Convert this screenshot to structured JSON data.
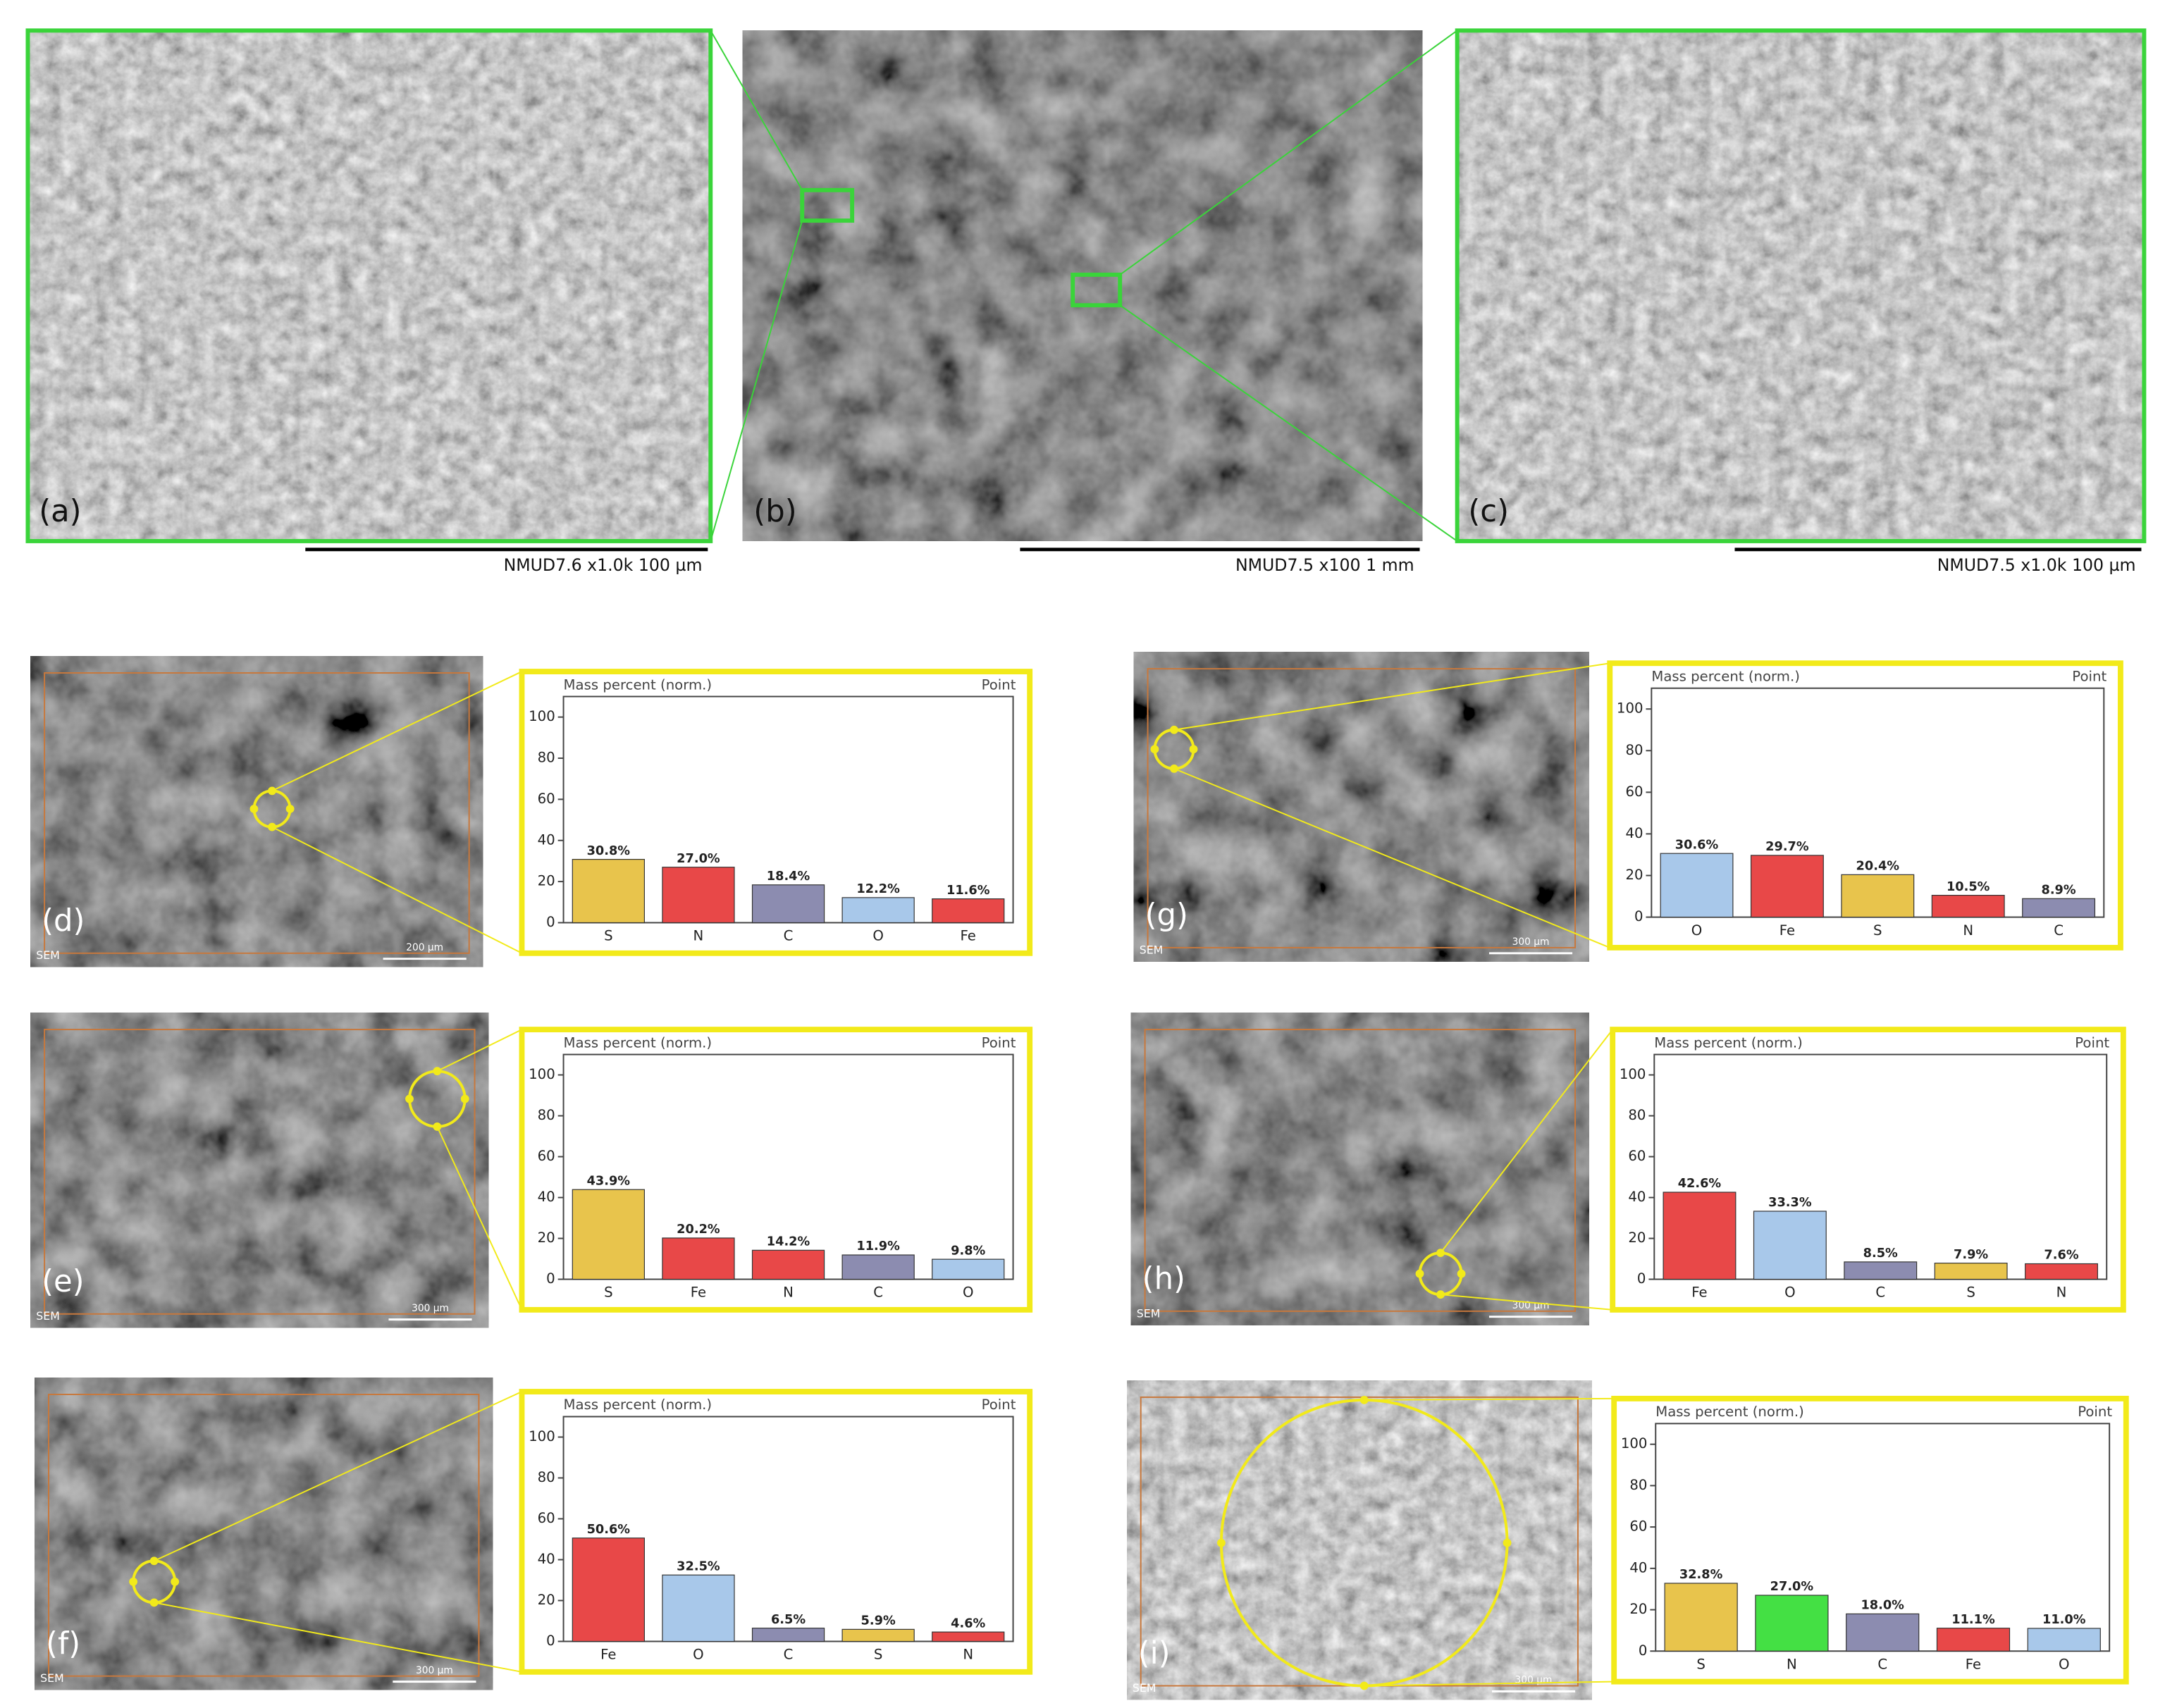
{
  "panels": [
    {
      "label": "(a)",
      "caption": "NMUD7.6   x1.0k    100 µm"
    },
    {
      "label": "(b)",
      "caption": "NMUD7.5   x100        1 mm"
    },
    {
      "label": "(c)",
      "caption": "NMUD7.5   x1.0k    100 µm"
    },
    {
      "label": "(d)",
      "sem": "SEM",
      "scale": "200 µm"
    },
    {
      "label": "(e)",
      "sem": "SEM",
      "scale": "300 µm"
    },
    {
      "label": "(f)",
      "sem": "SEM",
      "scale": "300 µm"
    },
    {
      "label": "(g)",
      "sem": "SEM",
      "scale": "300 µm"
    },
    {
      "label": "(h)",
      "sem": "SEM",
      "scale": "300 µm"
    },
    {
      "label": "(i)",
      "sem": "SEM",
      "scale": "300 µm"
    }
  ],
  "chart_data": [
    {
      "type": "bar",
      "title": "Mass percent (norm.)",
      "corner": "Point",
      "categories": [
        "S",
        "N",
        "C",
        "O",
        "Fe"
      ],
      "values": [
        30.8,
        27.0,
        18.4,
        12.2,
        11.6
      ],
      "value_labels": [
        "30.8%",
        "27.0%",
        "18.4%",
        "12.2%",
        "11.6%"
      ],
      "colors": [
        "#e8c44c",
        "#e84848",
        "#8c8cb0",
        "#a8c8ea",
        "#e84848"
      ],
      "ylim": [
        0,
        110
      ],
      "yticks": [
        0,
        20,
        40,
        60,
        80,
        100
      ]
    },
    {
      "type": "bar",
      "title": "Mass percent (norm.)",
      "corner": "Point",
      "categories": [
        "S",
        "Fe",
        "N",
        "C",
        "O"
      ],
      "values": [
        43.9,
        20.2,
        14.2,
        11.9,
        9.8
      ],
      "value_labels": [
        "43.9%",
        "20.2%",
        "14.2%",
        "11.9%",
        "9.8%"
      ],
      "colors": [
        "#e8c44c",
        "#e84848",
        "#e84848",
        "#8c8cb0",
        "#a8c8ea"
      ],
      "ylim": [
        0,
        110
      ],
      "yticks": [
        0,
        20,
        40,
        60,
        80,
        100
      ]
    },
    {
      "type": "bar",
      "title": "Mass percent (norm.)",
      "corner": "Point",
      "categories": [
        "Fe",
        "O",
        "C",
        "S",
        "N"
      ],
      "values": [
        50.6,
        32.5,
        6.5,
        5.9,
        4.6
      ],
      "value_labels": [
        "50.6%",
        "32.5%",
        "6.5%",
        "5.9%",
        "4.6%"
      ],
      "colors": [
        "#e84848",
        "#a8c8ea",
        "#8c8cb0",
        "#e8c44c",
        "#e84848"
      ],
      "ylim": [
        0,
        110
      ],
      "yticks": [
        0,
        20,
        40,
        60,
        80,
        100
      ]
    },
    {
      "type": "bar",
      "title": "Mass percent (norm.)",
      "corner": "Point",
      "categories": [
        "O",
        "Fe",
        "S",
        "N",
        "C"
      ],
      "values": [
        30.6,
        29.7,
        20.4,
        10.5,
        8.9
      ],
      "value_labels": [
        "30.6%",
        "29.7%",
        "20.4%",
        "10.5%",
        "8.9%"
      ],
      "colors": [
        "#a8c8ea",
        "#e84848",
        "#e8c44c",
        "#e84848",
        "#8c8cb0"
      ],
      "ylim": [
        0,
        110
      ],
      "yticks": [
        0,
        20,
        40,
        60,
        80,
        100
      ]
    },
    {
      "type": "bar",
      "title": "Mass percent (norm.)",
      "corner": "Point",
      "categories": [
        "Fe",
        "O",
        "C",
        "S",
        "N"
      ],
      "values": [
        42.6,
        33.3,
        8.5,
        7.9,
        7.6
      ],
      "value_labels": [
        "42.6%",
        "33.3%",
        "8.5%",
        "7.9%",
        "7.6%"
      ],
      "colors": [
        "#e84848",
        "#a8c8ea",
        "#8c8cb0",
        "#e8c44c",
        "#e84848"
      ],
      "ylim": [
        0,
        110
      ],
      "yticks": [
        0,
        20,
        40,
        60,
        80,
        100
      ]
    },
    {
      "type": "bar",
      "title": "Mass percent (norm.)",
      "corner": "Point",
      "categories": [
        "S",
        "N",
        "C",
        "Fe",
        "O"
      ],
      "values": [
        32.8,
        27.0,
        18.0,
        11.1,
        11.0
      ],
      "value_labels": [
        "32.8%",
        "27.0%",
        "18.0%",
        "11.1%",
        "11.0%"
      ],
      "colors": [
        "#e8c44c",
        "#44e044",
        "#8c8cb0",
        "#e84848",
        "#a8c8ea"
      ],
      "ylim": [
        0,
        110
      ],
      "yticks": [
        0,
        20,
        40,
        60,
        80,
        100
      ]
    }
  ]
}
